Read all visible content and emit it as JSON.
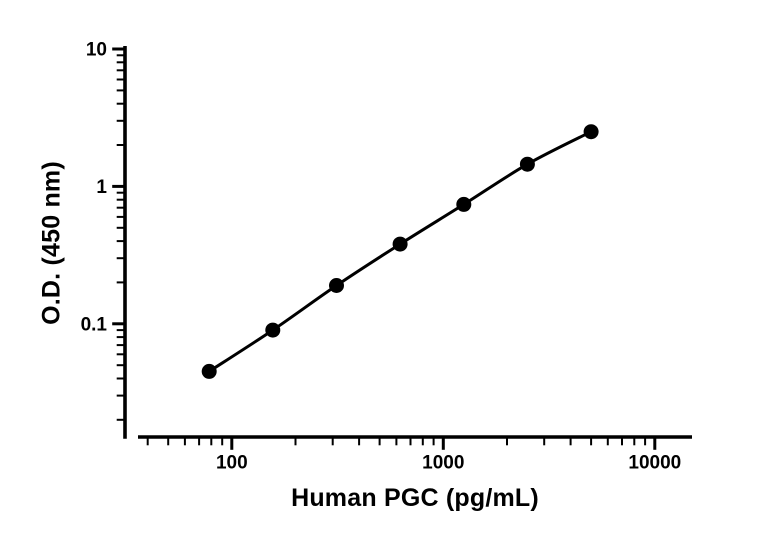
{
  "figure": {
    "background": "#ffffff"
  },
  "chart_data": {
    "type": "line",
    "x_scale": "log",
    "y_scale": "log",
    "x": [
      78.13,
      156.3,
      312.5,
      625,
      1250,
      2500,
      5000
    ],
    "y": [
      0.045,
      0.09,
      0.19,
      0.38,
      0.74,
      1.45,
      2.5
    ],
    "title": "",
    "xlabel": "Human PGC (pg/mL)",
    "ylabel": "O.D. (450 nm)",
    "xlim": [
      36,
      15000
    ],
    "ylim": [
      0.015,
      10
    ],
    "x_tick_values": [
      100,
      1000,
      10000
    ],
    "x_tick_labels": [
      "100",
      "1000",
      "10000"
    ],
    "y_tick_values": [
      0.1,
      1,
      10
    ],
    "y_tick_labels": [
      "0.1",
      "1",
      "10"
    ],
    "grid": false,
    "legend": "none",
    "marker": "filled-circle",
    "color": "#000000"
  }
}
